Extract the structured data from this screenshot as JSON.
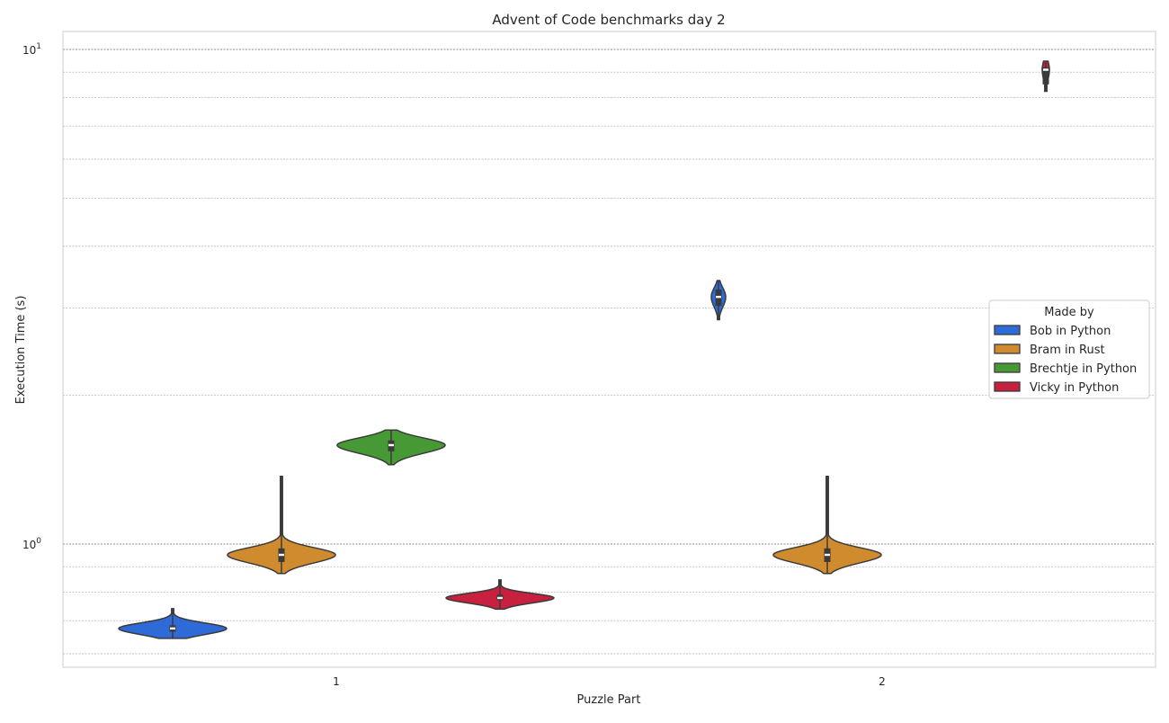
{
  "chart_data": {
    "type": "violin",
    "title": "Advent of Code benchmarks day 2",
    "xlabel": "Puzzle Part",
    "ylabel": "Execution Time (s)",
    "yscale": "log",
    "ylim": [
      0.564,
      10.87
    ],
    "y_tick_labels": [
      {
        "value": 1,
        "base": "10",
        "exp": "0"
      },
      {
        "value": 10,
        "base": "10",
        "exp": "1"
      }
    ],
    "categories": [
      "1",
      "2"
    ],
    "grid": true,
    "legend": {
      "title": "Made by",
      "placement": "right"
    },
    "series": [
      {
        "name": "Bob in Python",
        "color": "#2f6bd8",
        "values": [
          {
            "category": "1",
            "min": 0.644,
            "q1": 0.665,
            "median": 0.675,
            "q3": 0.685,
            "max": 0.74
          },
          {
            "category": "2",
            "min": 2.84,
            "q1": 3.03,
            "median": 3.16,
            "q3": 3.27,
            "max": 3.41
          }
        ]
      },
      {
        "name": "Bram in Rust",
        "color": "#d08b2f",
        "values": [
          {
            "category": "1",
            "min": 0.871,
            "q1": 0.92,
            "median": 0.951,
            "q3": 0.98,
            "max": 1.37
          },
          {
            "category": "2",
            "min": 0.871,
            "q1": 0.92,
            "median": 0.951,
            "q3": 0.98,
            "max": 1.37
          }
        ]
      },
      {
        "name": "Brechtje in Python",
        "color": "#469935",
        "values": [
          {
            "category": "1",
            "min": 1.445,
            "q1": 1.54,
            "median": 1.585,
            "q3": 1.62,
            "max": 1.7
          }
        ]
      },
      {
        "name": "Vicky in Python",
        "color": "#c8203f",
        "values": [
          {
            "category": "1",
            "min": 0.737,
            "q1": 0.77,
            "median": 0.778,
            "q3": 0.79,
            "max": 0.846
          },
          {
            "category": "2",
            "min": 8.22,
            "q1": 8.5,
            "median": 9.1,
            "q3": 9.2,
            "max": 9.47
          }
        ]
      }
    ]
  }
}
